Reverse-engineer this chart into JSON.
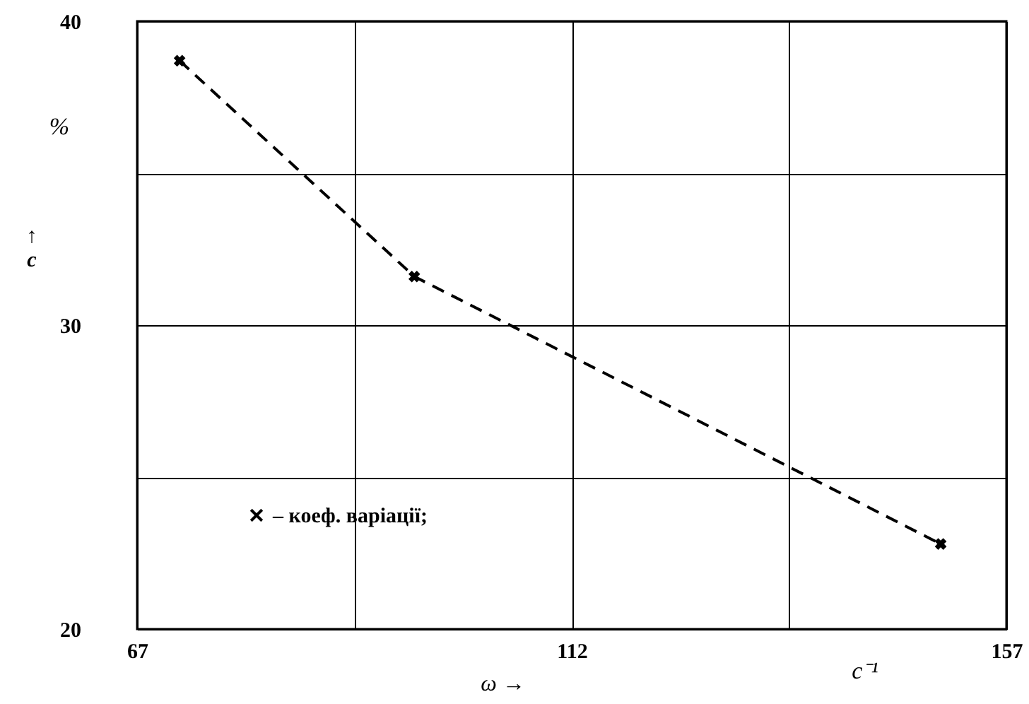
{
  "chart_data": {
    "type": "line",
    "xlabel": "ω →",
    "ylabel": "↑ c",
    "x": [
      71.4,
      95.7,
      150.2
    ],
    "series": [
      {
        "name": "– коеф. варіації;",
        "color": "#000000",
        "values": [
          38.7,
          31.6,
          22.8
        ]
      }
    ],
    "xlim": [
      67,
      157
    ],
    "ylim": [
      20,
      40
    ],
    "xticks": [
      67,
      {
        "value": 89.5,
        "label": null
      },
      112,
      {
        "value": 134.5,
        "label": null
      },
      157
    ],
    "yticks": [
      20,
      {
        "value": 25,
        "label": null
      },
      30,
      {
        "value": 35,
        "label": null
      },
      40
    ],
    "grid": true,
    "marker": "cross",
    "line_style": "dashed",
    "legend": "left",
    "annotations": [
      "%",
      "c⁻¹"
    ]
  }
}
